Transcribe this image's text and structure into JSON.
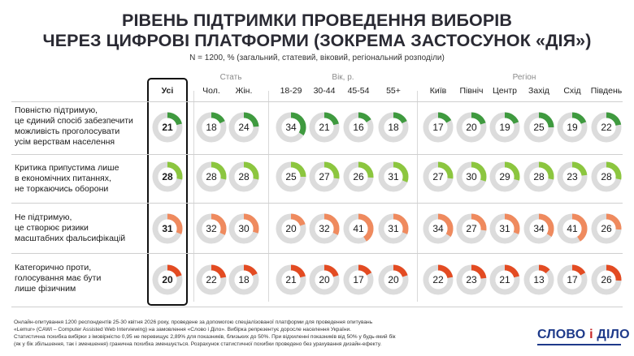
{
  "title": {
    "line1": "РІВЕНЬ ПІДТРИМКИ ПРОВЕДЕННЯ ВИБОРІВ",
    "line2": "ЧЕРЕЗ ЦИФРОВІ ПЛАТФОРМИ (ЗОКРЕМА ЗАСТОСУНОК «ДІЯ»)"
  },
  "subtitle": "N = 1200, % (загальний, статевий, віковий, регіональний розподіли)",
  "groups": {
    "sex": "Стать",
    "age": "Вік, р.",
    "region": "Регіон"
  },
  "colors": {
    "green_dark": "#3f9a3f",
    "green_light": "#8cc63f",
    "orange_light": "#ef8a5e",
    "red": "#e34b22",
    "track": "#dcdcdc",
    "logo": "#1e3a8a",
    "logo_accent": "#c62828"
  },
  "chart_data": {
    "type": "donut-matrix",
    "unit": "%",
    "categories": [
      "Усі",
      "Чол.",
      "Жін.",
      "18-29",
      "30-44",
      "45-54",
      "55+",
      "Київ",
      "Північ",
      "Центр",
      "Захід",
      "Схід",
      "Південь"
    ],
    "series": [
      {
        "name": "Повністю підтримую, це єдиний спосіб забезпечити можливість проголосувати усім верствам населення",
        "label_lines": [
          "Повністю підтримую,",
          "це єдиний спосіб забезпечити",
          "можливість проголосувати",
          "усім верствам населення"
        ],
        "color": "#3f9a3f",
        "values": [
          21,
          18,
          24,
          34,
          21,
          16,
          18,
          17,
          20,
          19,
          25,
          19,
          22
        ]
      },
      {
        "name": "Критика припустима лише в економічних питаннях, не торкаючись оборони",
        "label_lines": [
          "Критика припустима лише",
          "в економічних питаннях,",
          "не торкаючись оборони"
        ],
        "color": "#8cc63f",
        "values": [
          28,
          28,
          28,
          25,
          27,
          26,
          31,
          27,
          30,
          29,
          28,
          23,
          28
        ]
      },
      {
        "name": "Не підтримую, це створює ризики масштабних фальсифікацій",
        "label_lines": [
          "Не підтримую,",
          "це створює ризики",
          "масштабних фальсифікацій"
        ],
        "color": "#ef8a5e",
        "values": [
          31,
          32,
          30,
          20,
          32,
          41,
          31,
          34,
          27,
          31,
          34,
          41,
          26
        ]
      },
      {
        "name": "Категорично проти, голосування має бути лише фізичним",
        "label_lines": [
          "Категорично проти,",
          "голосування має бути",
          "лише фізичним"
        ],
        "color": "#e34b22",
        "values": [
          20,
          22,
          18,
          21,
          20,
          17,
          20,
          22,
          23,
          21,
          13,
          17,
          26
        ]
      }
    ]
  },
  "footnote": {
    "line1": "Онлайн-опитування 1200 респондентів 25-30 квітня 2026 року, проведене за допомогою спеціалізованої платформи для проведення опитувань",
    "line2": "«Lemur» (CAWI – Computer Assisted Web Interviewing) на замовлення «Слово і Діло». Вибірка репрезентує доросле населення України.",
    "line3": "Статистична похибка вибірки з імовірністю 0,95 не перевищує 2,89% для показників, близьких до 50%. При відхиленні показників від 50% у будь-який бік",
    "line4": "(як у бік збільшення, так і зменшення) гранична похибка зменшується. Розрахунок статистичної похибки проведено без урахування дизайн-ефекту."
  },
  "logo": {
    "part1": "СЛОВО",
    "amp": "і",
    "part2": "ДІЛО"
  }
}
